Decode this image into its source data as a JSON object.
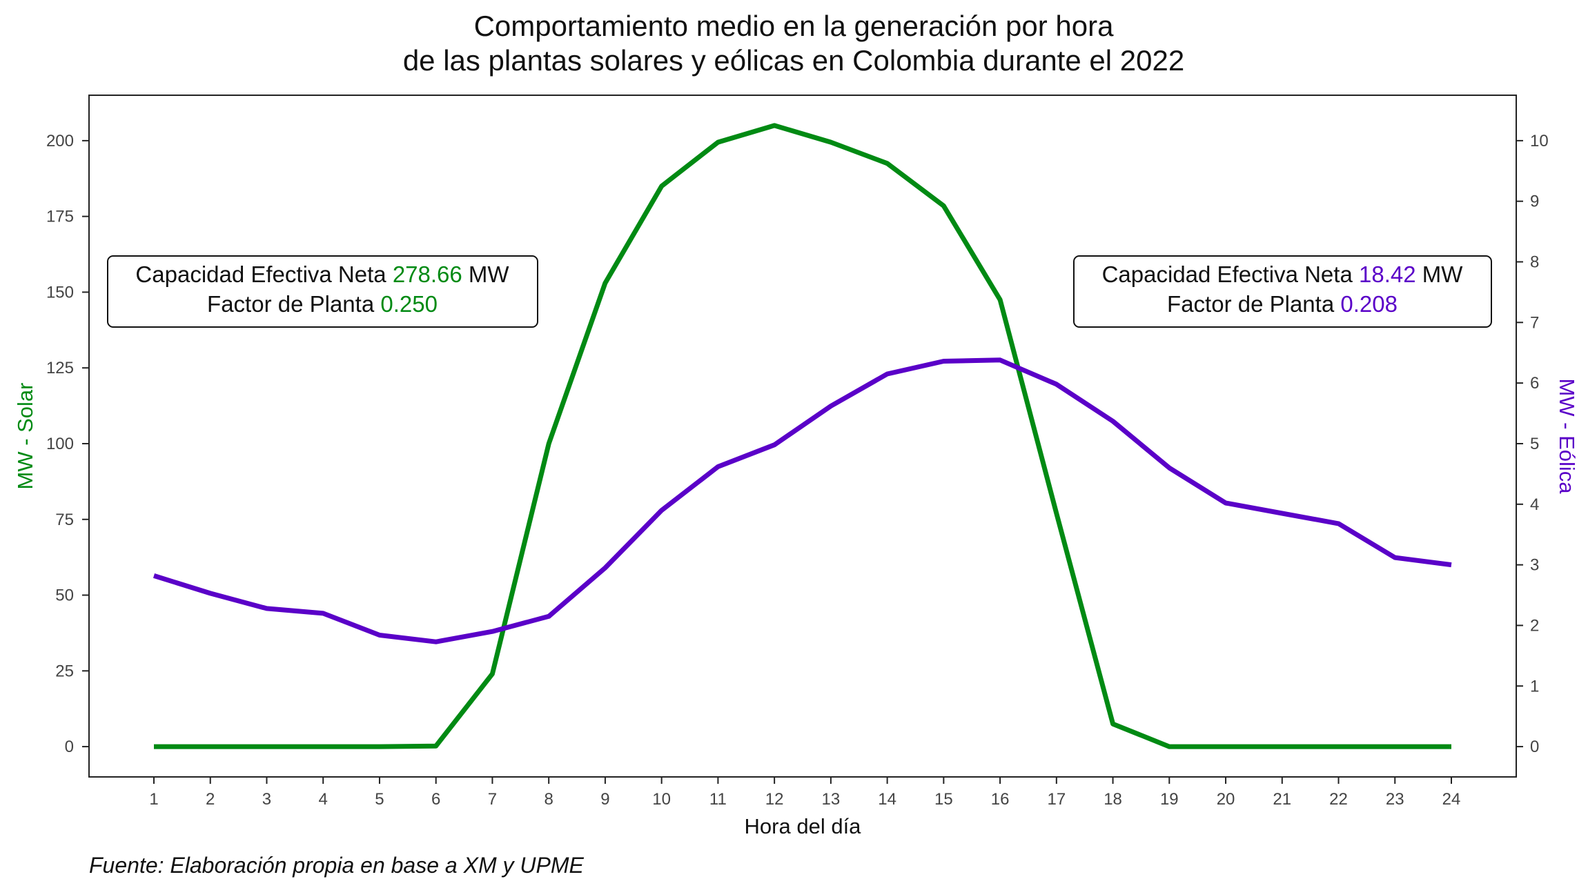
{
  "chart_data": {
    "type": "line",
    "title_line1": "Comportamiento medio en la generación por hora",
    "title_line2": "de las plantas solares y eólicas en Colombia durante el 2022",
    "xlabel": "Hora del día",
    "ylabel_left": "MW - Solar",
    "ylabel_right": "MW - Eólica",
    "caption": "Fuente: Elaboración propia en base a XM y UPME",
    "x": [
      1,
      2,
      3,
      4,
      5,
      6,
      7,
      8,
      9,
      10,
      11,
      12,
      13,
      14,
      15,
      16,
      17,
      18,
      19,
      20,
      21,
      22,
      23,
      24
    ],
    "x_ticks": [
      "1",
      "2",
      "3",
      "4",
      "5",
      "6",
      "7",
      "8",
      "9",
      "10",
      "11",
      "12",
      "13",
      "14",
      "15",
      "16",
      "17",
      "18",
      "19",
      "20",
      "21",
      "22",
      "23",
      "24"
    ],
    "xlim": [
      -0.15,
      25.15
    ],
    "ylim_left": [
      -10,
      215
    ],
    "yticks_left": [
      "0",
      "25",
      "50",
      "75",
      "100",
      "125",
      "150",
      "175",
      "200"
    ],
    "ylim_right": [
      -0.5,
      10.75
    ],
    "yticks_right": [
      "0",
      "1",
      "2",
      "3",
      "4",
      "5",
      "6",
      "7",
      "8",
      "9",
      "10"
    ],
    "grid": false,
    "series": [
      {
        "axis": "left",
        "color": "#008a13",
        "values": [
          0,
          0,
          0,
          0,
          0,
          0.2,
          24,
          100,
          153,
          185,
          199.5,
          205,
          199.5,
          192.5,
          178.5,
          147.5,
          77,
          7.5,
          0,
          0,
          0,
          0,
          0,
          0
        ]
      },
      {
        "axis": "right",
        "color": "#5a00c8",
        "values": [
          2.82,
          2.53,
          2.28,
          2.2,
          1.84,
          1.73,
          1.9,
          2.15,
          2.95,
          3.9,
          4.62,
          4.98,
          5.62,
          6.15,
          6.36,
          6.38,
          5.98,
          5.37,
          4.6,
          4.02,
          3.85,
          3.68,
          3.12,
          3.0
        ]
      }
    ],
    "annotations": {
      "solar": {
        "line1_prefix": "Capacidad Efectiva Neta ",
        "line1_value": "278.66",
        "line1_suffix": " MW",
        "line2_prefix": "Factor de Planta ",
        "line2_value": "0.250",
        "color": "#008a13"
      },
      "eolica": {
        "line1_prefix": "Capacidad Efectiva Neta ",
        "line1_value": "18.42",
        "line1_suffix": " MW",
        "line2_prefix": "Factor de Planta ",
        "line2_value": "0.208",
        "color": "#5a00c8"
      }
    }
  }
}
